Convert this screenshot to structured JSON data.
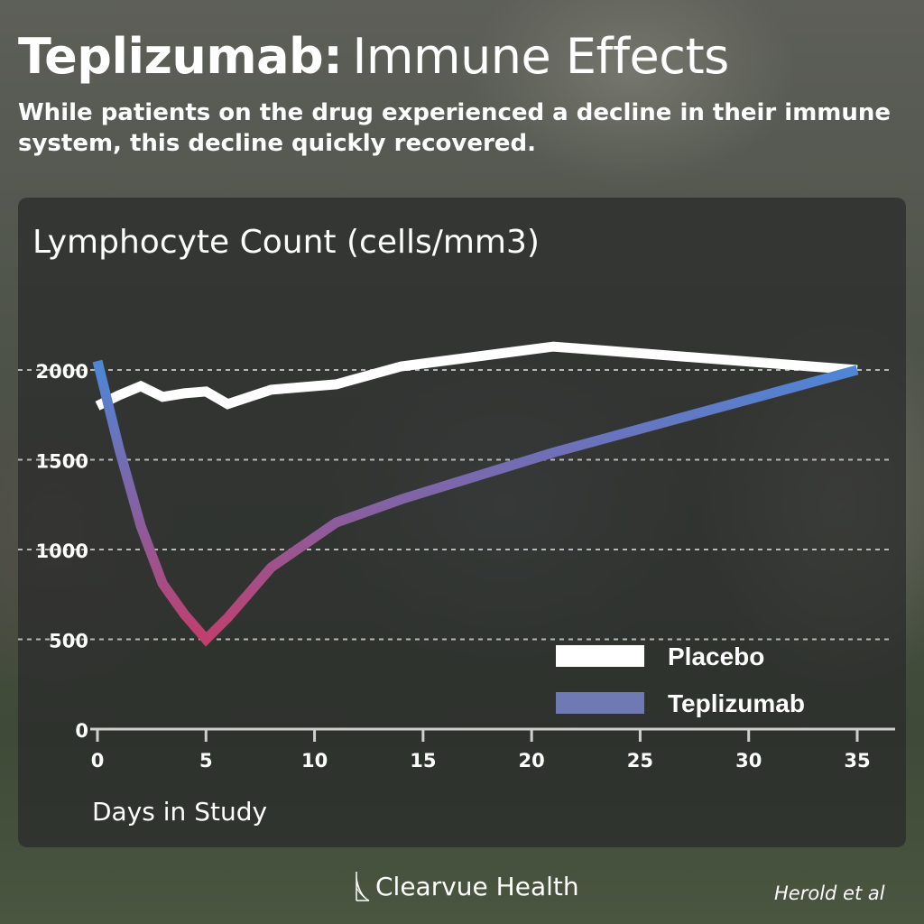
{
  "header": {
    "title_bold": "Teplizumab:",
    "title_light": "Immune Effects",
    "subtitle": "While patients on the drug experienced a decline in their immune system, this decline quickly recovered."
  },
  "footer": {
    "brand": "Clearvue Health",
    "brand_icon": "clearvue-logo-icon",
    "citation": "Herold et al"
  },
  "colors": {
    "placebo": "#ffffff",
    "teplizumab_start": "#4e86d6",
    "teplizumab_mid": "#8a5e9e",
    "teplizumab_low": "#c23e6c",
    "legend_teplizumab": "#6f79b3",
    "gridline": "#b8b8b8"
  },
  "chart_data": {
    "type": "line",
    "title": "Lymphocyte Count (cells/mm3)",
    "xlabel": "Days in Study",
    "ylabel": "",
    "xlim": [
      0,
      35
    ],
    "ylim": [
      0,
      2000
    ],
    "xticks": [
      0,
      5,
      10,
      15,
      20,
      25,
      30,
      35
    ],
    "yticks": [
      0,
      500,
      1000,
      1500,
      2000
    ],
    "grid": "horizontal-dashed",
    "legend_position": "bottom-right",
    "series": [
      {
        "name": "Placebo",
        "color": "#ffffff",
        "x": [
          0,
          1,
          2,
          3,
          4,
          5,
          6,
          7,
          8,
          11,
          14,
          21,
          35
        ],
        "y": [
          1800,
          1860,
          1910,
          1850,
          1870,
          1880,
          1810,
          1850,
          1890,
          1920,
          2020,
          2130,
          2000
        ]
      },
      {
        "name": "Teplizumab",
        "color": "#6f79b3",
        "x": [
          0,
          1,
          2,
          3,
          4,
          5,
          6,
          7,
          8,
          11,
          14,
          21,
          35
        ],
        "y": [
          2050,
          1560,
          1130,
          810,
          640,
          500,
          620,
          760,
          900,
          1150,
          1280,
          1540,
          2000
        ]
      }
    ]
  }
}
